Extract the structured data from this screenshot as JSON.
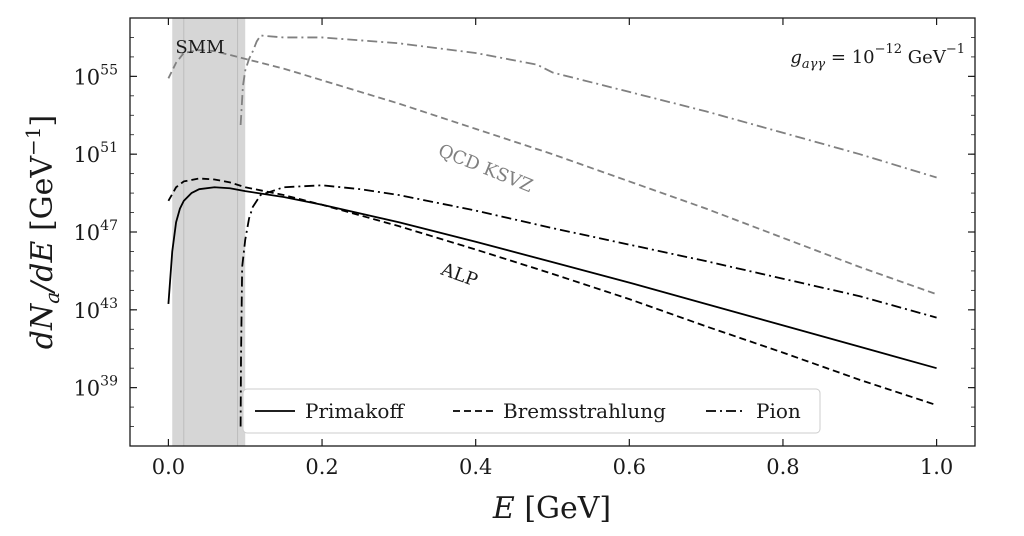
{
  "chart_data": {
    "type": "line",
    "xlabel": "E [GeV]",
    "ylabel": "dN_a/dE [GeV^-1]",
    "xlim": [
      -0.05,
      1.05
    ],
    "ylim": [
      36.0,
      58.0
    ],
    "y_scale": "log",
    "grid": false,
    "legend_position": "bottom",
    "x_ticks": [
      "0.0",
      "0.2",
      "0.4",
      "0.6",
      "0.8",
      "1.0"
    ],
    "y_ticks": [
      {
        "base": "10",
        "exp": "39"
      },
      {
        "base": "10",
        "exp": "43"
      },
      {
        "base": "10",
        "exp": "47"
      },
      {
        "base": "10",
        "exp": "51"
      },
      {
        "base": "10",
        "exp": "55"
      }
    ],
    "shaded_region": {
      "label": "SMM",
      "x_range": [
        0.005,
        0.1
      ],
      "inner_lines": [
        0.02,
        0.09
      ],
      "color": "#d6d6d6"
    },
    "coupling_text": "g_aγγ = 10^-12 GeV^-1",
    "curve_labels": [
      {
        "text": "QCD KSVZ",
        "color": "#808080"
      },
      {
        "text": "ALP",
        "color": "#1a1a1a"
      }
    ],
    "legend": [
      {
        "name": "Primakoff",
        "dash": "solid"
      },
      {
        "name": "Bremsstrahlung",
        "dash": "dashed"
      },
      {
        "name": "Pion",
        "dash": "dashdot"
      }
    ],
    "series": [
      {
        "name": "Primakoff",
        "group": "ALP",
        "color": "#000000",
        "dash": "solid",
        "x": [
          0.0,
          0.005,
          0.01,
          0.015,
          0.02,
          0.03,
          0.04,
          0.06,
          0.08,
          0.1,
          0.15,
          0.2,
          0.3,
          0.4,
          0.5,
          0.6,
          0.7,
          0.8,
          0.9,
          1.0
        ],
        "log10_y": [
          43.3,
          46.0,
          47.5,
          48.2,
          48.6,
          49.0,
          49.2,
          49.3,
          49.25,
          49.1,
          48.8,
          48.4,
          47.5,
          46.5,
          45.45,
          44.4,
          43.3,
          42.2,
          41.1,
          40.0
        ]
      },
      {
        "name": "Bremsstrahlung",
        "group": "ALP",
        "color": "#000000",
        "dash": "dashed",
        "x": [
          0.0,
          0.01,
          0.02,
          0.04,
          0.06,
          0.08,
          0.1,
          0.15,
          0.2,
          0.3,
          0.4,
          0.5,
          0.6,
          0.7,
          0.8,
          0.9,
          1.0
        ],
        "log10_y": [
          48.6,
          49.3,
          49.6,
          49.75,
          49.7,
          49.55,
          49.3,
          48.9,
          48.4,
          47.3,
          46.1,
          44.85,
          43.55,
          42.15,
          40.8,
          39.4,
          38.1
        ]
      },
      {
        "name": "Pion",
        "group": "ALP",
        "color": "#000000",
        "dash": "dashdot",
        "x": [
          0.094,
          0.0945,
          0.096,
          0.1,
          0.105,
          0.11,
          0.12,
          0.15,
          0.2,
          0.25,
          0.3,
          0.4,
          0.5,
          0.6,
          0.7,
          0.8,
          0.9,
          1.0
        ],
        "log10_y": [
          37.0,
          40.5,
          45.2,
          46.6,
          47.7,
          48.3,
          48.9,
          49.3,
          49.4,
          49.2,
          48.9,
          48.1,
          47.2,
          46.35,
          45.5,
          44.6,
          43.7,
          42.6
        ]
      },
      {
        "name": "Bremsstrahlung",
        "group": "QCD KSVZ",
        "color": "#808080",
        "dash": "dashed",
        "x": [
          0.0,
          0.01,
          0.02,
          0.04,
          0.06,
          0.08,
          0.1,
          0.15,
          0.2,
          0.3,
          0.4,
          0.5,
          0.6,
          0.7,
          0.8,
          0.9,
          1.0
        ],
        "log10_y": [
          54.9,
          55.7,
          56.2,
          56.35,
          56.3,
          56.1,
          55.9,
          55.4,
          54.8,
          53.6,
          52.3,
          51.0,
          49.6,
          48.2,
          46.7,
          45.2,
          43.8
        ]
      },
      {
        "name": "Pion",
        "group": "QCD KSVZ",
        "color": "#808080",
        "dash": "dashdot",
        "x": [
          0.094,
          0.097,
          0.1,
          0.105,
          0.11,
          0.115,
          0.12,
          0.15,
          0.2,
          0.3,
          0.4,
          0.48,
          0.5,
          0.6,
          0.7,
          0.8,
          0.9,
          1.0
        ],
        "log10_y": [
          52.5,
          54.5,
          55.3,
          55.9,
          56.3,
          56.8,
          57.1,
          57.0,
          57.0,
          56.7,
          56.2,
          55.6,
          55.2,
          54.2,
          53.2,
          52.1,
          51.0,
          49.8
        ]
      }
    ]
  }
}
